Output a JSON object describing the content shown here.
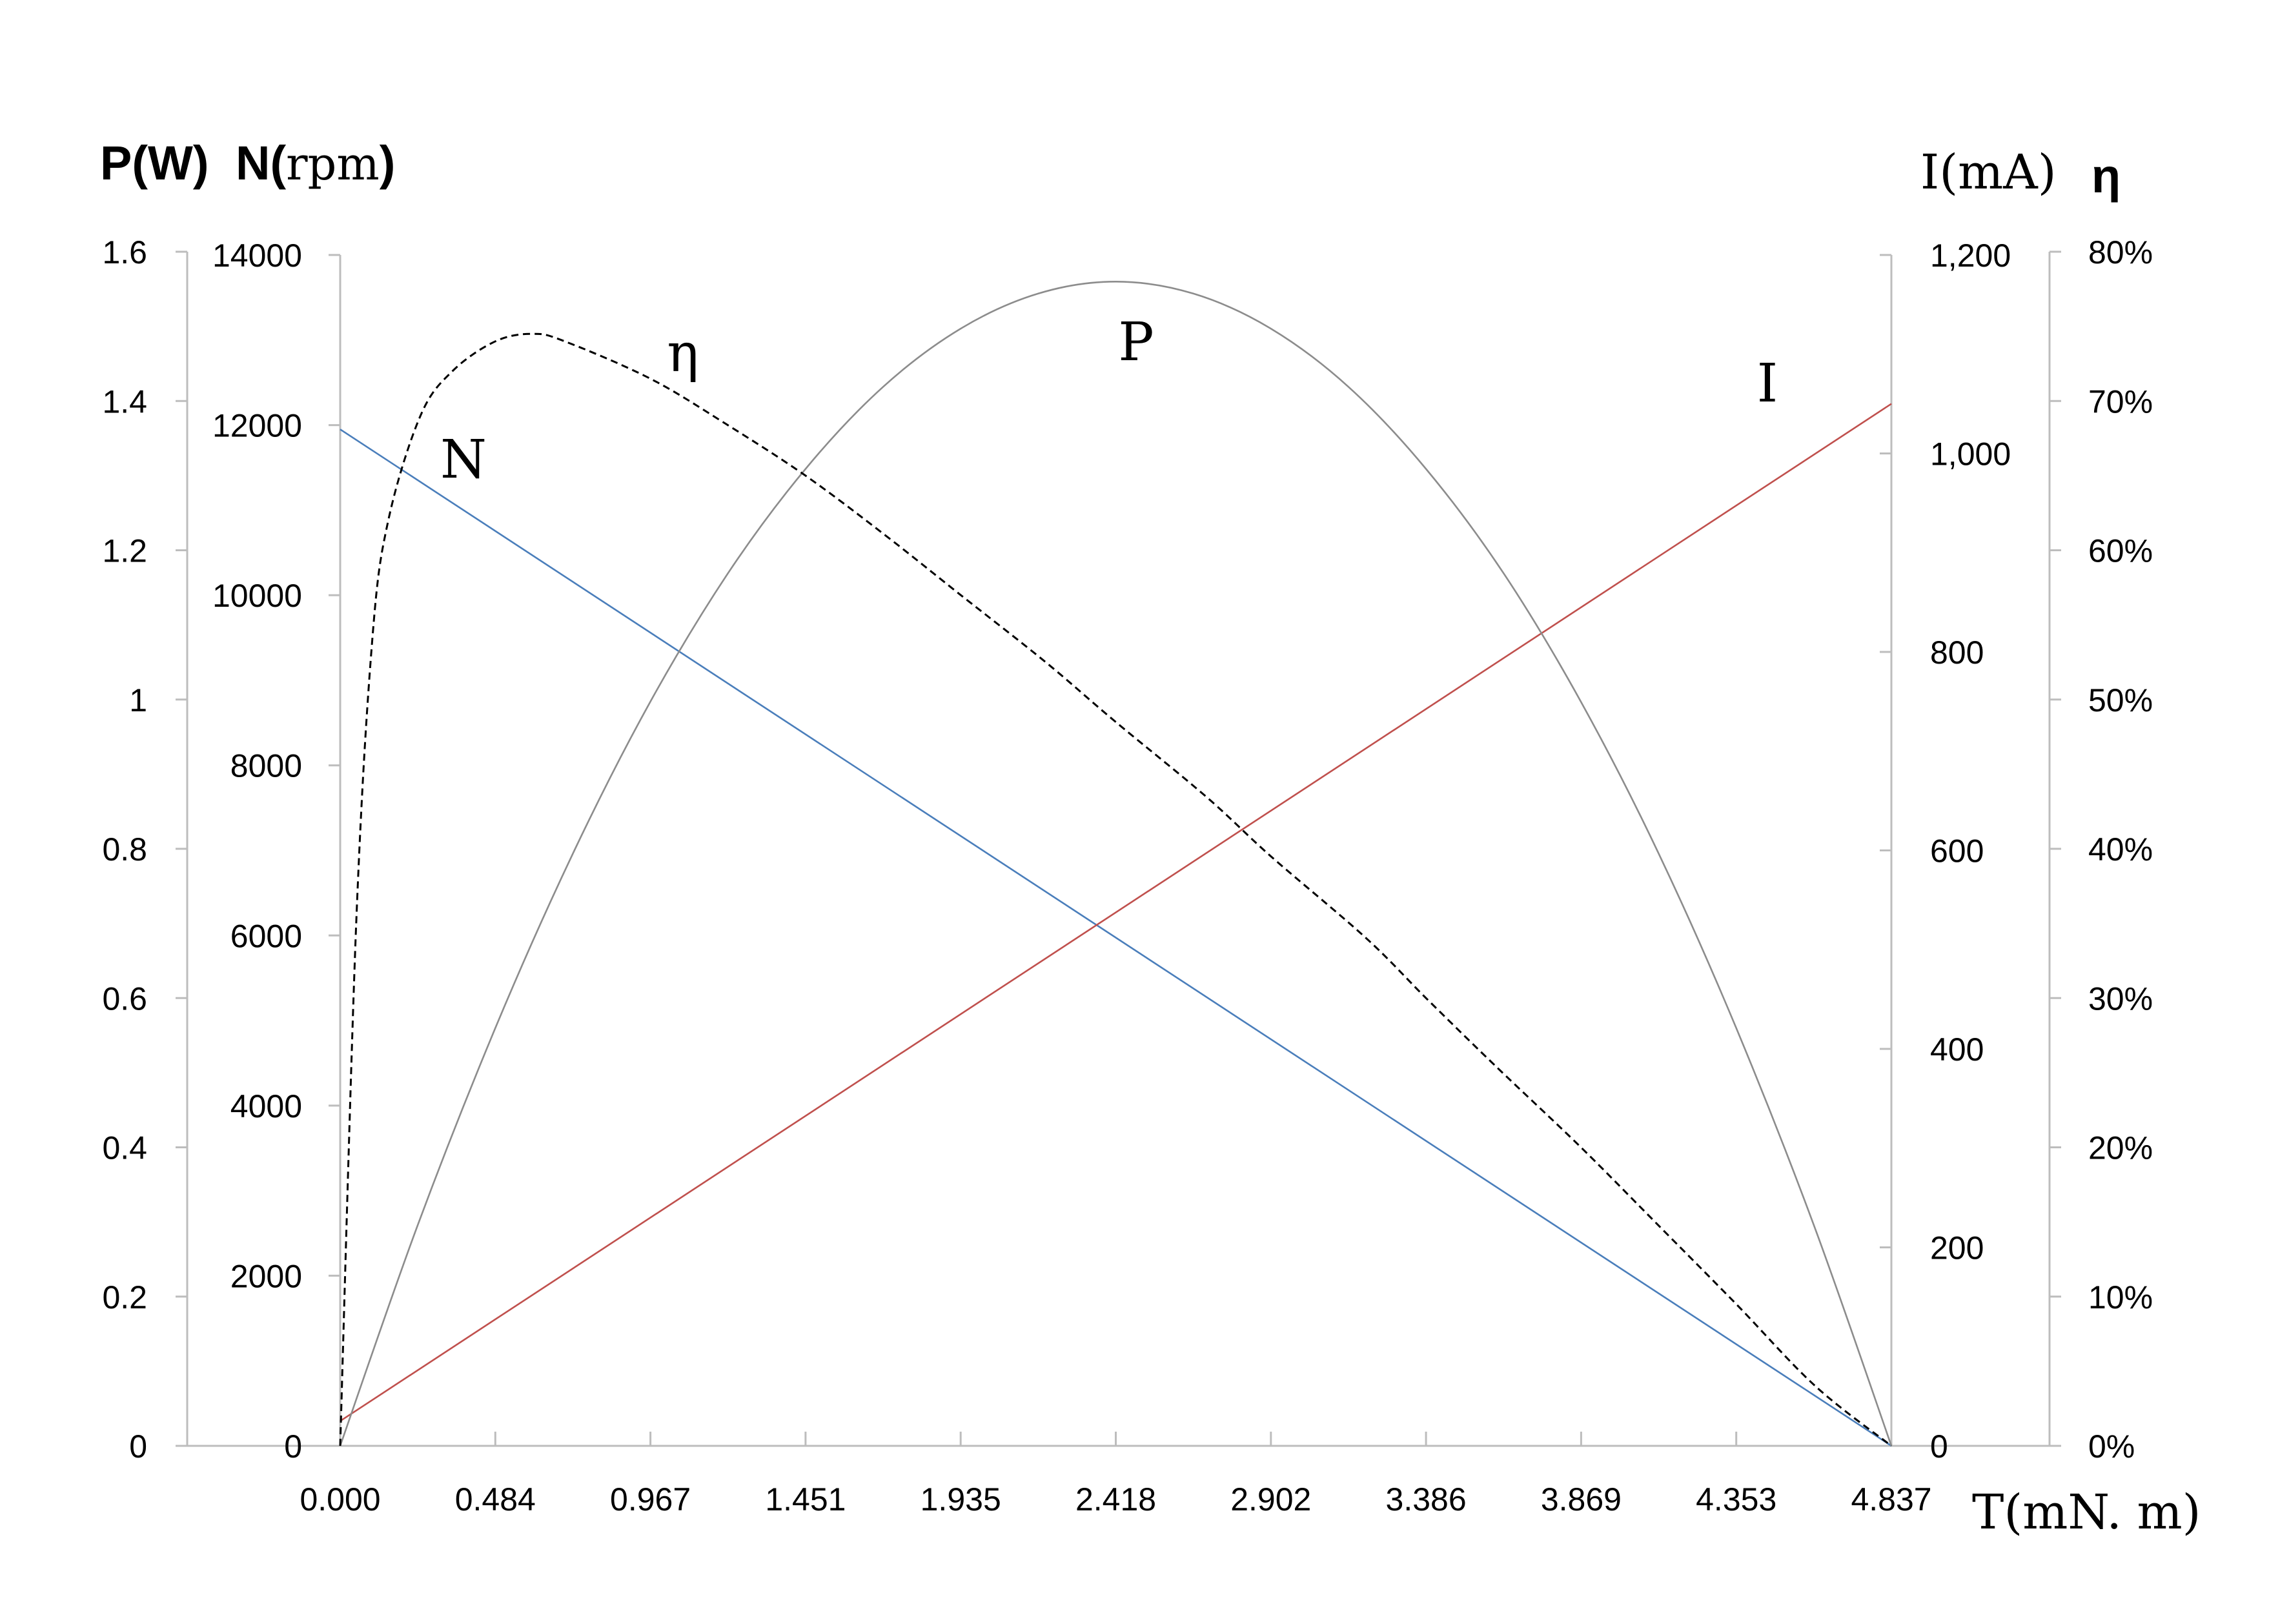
{
  "chart_data": {
    "type": "line",
    "title": "",
    "axis_titles": {
      "left_outer": "P(W)",
      "left_inner_prefix": "N(",
      "left_inner_unit": "rpm",
      "left_inner_suffix": ")",
      "right_inner": "I(mA)",
      "right_outer": "η",
      "x": "T(mN. m)"
    },
    "x_axis": {
      "label": "T(mN. m)",
      "range": [
        0,
        4.837
      ],
      "tick_labels": [
        "0.000",
        "0.484",
        "0.967",
        "1.451",
        "1.935",
        "2.418",
        "2.902",
        "3.386",
        "3.869",
        "4.353",
        "4.837"
      ]
    },
    "y_axes": {
      "P": {
        "label": "P(W)",
        "range": [
          0,
          1.6
        ],
        "tick_labels": [
          "0",
          "0.2",
          "0.4",
          "0.6",
          "0.8",
          "1",
          "1.2",
          "1.4",
          "1.6"
        ]
      },
      "N": {
        "label": "N(rpm)",
        "range": [
          0,
          14000
        ],
        "tick_labels": [
          "0",
          "2000",
          "4000",
          "6000",
          "8000",
          "10000",
          "12000",
          "14000"
        ]
      },
      "I": {
        "label": "I(mA)",
        "range": [
          0,
          1200
        ],
        "tick_labels": [
          "0",
          "200",
          "400",
          "600",
          "800",
          "1,000",
          "1,200"
        ]
      },
      "eta": {
        "label": "η",
        "range": [
          0,
          80
        ],
        "tick_labels": [
          "0%",
          "10%",
          "20%",
          "30%",
          "40%",
          "50%",
          "60%",
          "70%",
          "80%"
        ]
      }
    },
    "grid": false,
    "legend": "none",
    "series": [
      {
        "name": "N",
        "axis": "N",
        "color": "#4a7ebb",
        "x": [
          0,
          4.837
        ],
        "values": [
          11950,
          0
        ]
      },
      {
        "name": "I",
        "axis": "I",
        "color": "#c0504d",
        "x": [
          0,
          4.837
        ],
        "values": [
          25,
          1050
        ]
      },
      {
        "name": "P",
        "axis": "P",
        "color": "#8c8c8c",
        "x": [
          0,
          0.242,
          0.484,
          0.726,
          0.967,
          1.209,
          1.451,
          1.693,
          1.935,
          2.177,
          2.418,
          2.66,
          2.902,
          3.144,
          3.386,
          3.628,
          3.869,
          4.111,
          4.353,
          4.595,
          4.837
        ],
        "values": [
          0,
          0.296,
          0.56,
          0.794,
          0.997,
          1.169,
          1.309,
          1.419,
          1.497,
          1.544,
          1.56,
          1.544,
          1.497,
          1.419,
          1.309,
          1.169,
          0.997,
          0.794,
          0.56,
          0.296,
          0
        ]
      },
      {
        "name": "η",
        "axis": "eta",
        "color": "#000000",
        "dashed": true,
        "x": [
          0,
          0.05,
          0.1,
          0.15,
          0.25,
          0.35,
          0.484,
          0.6,
          0.7,
          0.967,
          1.2,
          1.451,
          1.7,
          1.935,
          2.2,
          2.418,
          2.7,
          2.902,
          3.2,
          3.386,
          3.6,
          3.869,
          4.1,
          4.353,
          4.6,
          4.837
        ],
        "values": [
          0,
          35,
          54,
          62,
          69,
          72,
          74,
          74.5,
          74,
          71.5,
          68.5,
          65,
          61,
          57,
          52.5,
          48.5,
          43.5,
          39.5,
          34,
          30,
          25.5,
          20,
          15,
          9.5,
          4,
          0
        ]
      }
    ],
    "annotations": [
      {
        "text": "N",
        "series": "N"
      },
      {
        "text": "η",
        "series": "η"
      },
      {
        "text": "P",
        "series": "P"
      },
      {
        "text": "I",
        "series": "I"
      }
    ]
  }
}
